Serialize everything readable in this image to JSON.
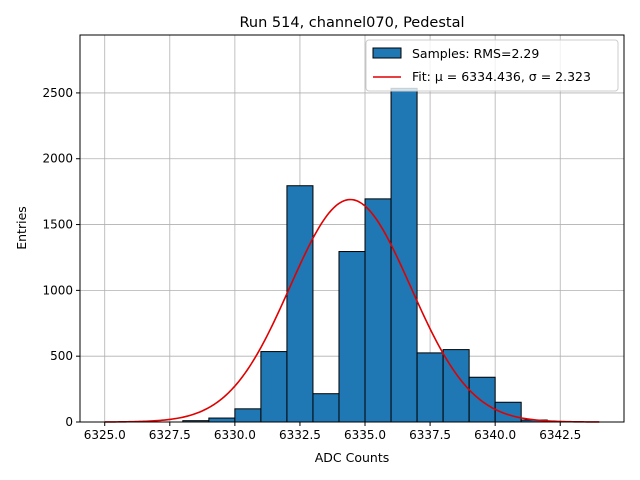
{
  "chart_data": {
    "type": "bar",
    "title": "Run 514, channel070, Pedestal",
    "xlabel": "ADC Counts",
    "ylabel": "Entries",
    "xlim": [
      6324.05,
      6344.95
    ],
    "ylim": [
      0,
      2940
    ],
    "xticks": [
      "6325.0",
      "6327.5",
      "6330.0",
      "6332.5",
      "6335.0",
      "6337.5",
      "6340.0",
      "6342.5"
    ],
    "xtick_values": [
      6325.0,
      6327.5,
      6330.0,
      6332.5,
      6335.0,
      6337.5,
      6340.0,
      6342.5
    ],
    "yticks": [
      "0",
      "500",
      "1000",
      "1500",
      "2000",
      "2500"
    ],
    "ytick_values": [
      0,
      500,
      1000,
      1500,
      2000,
      2500
    ],
    "grid": true,
    "legend_position": "top-right",
    "histogram": {
      "name": "Samples: RMS=2.29",
      "bin_edges": [
        6328.0,
        6329.0,
        6330.0,
        6331.0,
        6332.0,
        6333.0,
        6334.0,
        6335.0,
        6336.0,
        6337.0,
        6338.0,
        6339.0,
        6340.0,
        6341.0,
        6342.0
      ],
      "counts": [
        10,
        30,
        100,
        535,
        1795,
        215,
        1295,
        1695,
        2535,
        525,
        550,
        340,
        150,
        15,
        25
      ],
      "color": "#1f77b4"
    },
    "fit": {
      "name": "Fit: μ = 6334.436, σ = 2.323",
      "mu": 6334.436,
      "sigma": 2.323,
      "amplitude": 1690,
      "x_range": [
        6325.0,
        6344.0
      ],
      "color": "#e00000"
    }
  }
}
